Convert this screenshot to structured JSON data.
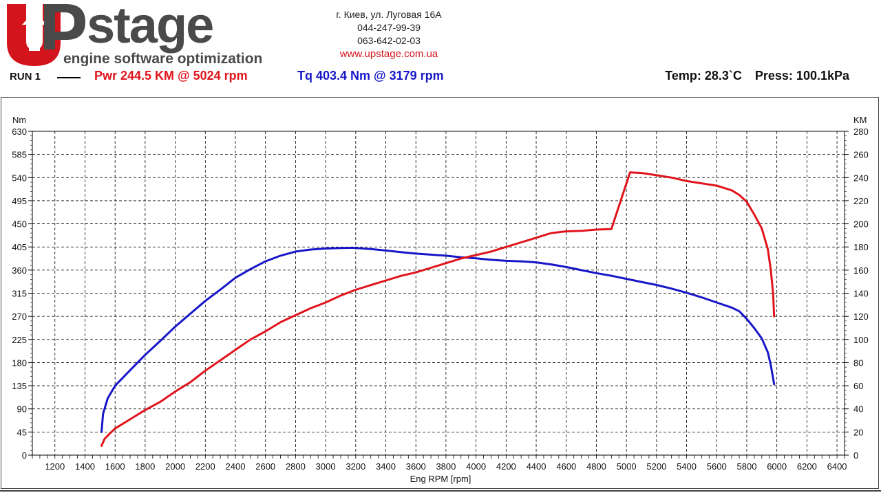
{
  "header": {
    "brand": "UPstage",
    "brand_text": "stage",
    "tagline": "engine software optimization",
    "address": "г. Киев, ул. Луговая 16А",
    "phone1": "044-247-99-39",
    "phone2": "063-642-02-03",
    "website": "www.upstage.com.ua"
  },
  "run": {
    "label": "RUN 1",
    "power_summary": "Pwr  244.5 KM @ 5024 rpm",
    "torque_summary": "Tq 403.4 Nm @ 3179 rpm",
    "temperature": "Temp: 28.3`C",
    "pressure": "Press: 100.1kPa"
  },
  "colors": {
    "power": "#e0141c",
    "torque": "#1717c8",
    "logo_red": "#d4141c",
    "logo_gray": "#4a4a4a"
  },
  "chart_data": {
    "type": "line",
    "xlabel": "Eng RPM [rpm]",
    "ylabel_left": "Nm",
    "ylabel_right": "KM",
    "xlim": [
      1050,
      6450
    ],
    "xticks": [
      1200,
      1400,
      1600,
      1800,
      2000,
      2200,
      2400,
      2600,
      2800,
      3000,
      3200,
      3400,
      3600,
      3800,
      4000,
      4200,
      4400,
      4600,
      4800,
      5000,
      5200,
      5400,
      5600,
      5800,
      6000,
      6200,
      6400
    ],
    "ylim_left": [
      0,
      630
    ],
    "yticks_left": [
      0,
      45,
      90,
      135,
      180,
      225,
      270,
      315,
      360,
      405,
      450,
      495,
      540,
      585,
      630
    ],
    "ylim_right": [
      0,
      280
    ],
    "yticks_right": [
      0,
      20,
      40,
      60,
      80,
      100,
      120,
      140,
      160,
      180,
      200,
      220,
      240,
      260,
      280
    ],
    "grid": true,
    "series": [
      {
        "name": "Tq",
        "axis": "left",
        "points": [
          [
            1510,
            45
          ],
          [
            1520,
            80
          ],
          [
            1550,
            110
          ],
          [
            1600,
            135
          ],
          [
            1700,
            165
          ],
          [
            1800,
            195
          ],
          [
            1900,
            222
          ],
          [
            2000,
            250
          ],
          [
            2100,
            275
          ],
          [
            2200,
            300
          ],
          [
            2300,
            322
          ],
          [
            2400,
            345
          ],
          [
            2500,
            362
          ],
          [
            2600,
            377
          ],
          [
            2700,
            388
          ],
          [
            2800,
            396
          ],
          [
            2900,
            400
          ],
          [
            3000,
            402
          ],
          [
            3100,
            403
          ],
          [
            3179,
            403.4
          ],
          [
            3300,
            401
          ],
          [
            3400,
            398
          ],
          [
            3500,
            395
          ],
          [
            3600,
            392
          ],
          [
            3700,
            390
          ],
          [
            3800,
            388
          ],
          [
            3900,
            385
          ],
          [
            4000,
            383
          ],
          [
            4100,
            380
          ],
          [
            4200,
            378
          ],
          [
            4300,
            377
          ],
          [
            4400,
            375
          ],
          [
            4500,
            371
          ],
          [
            4600,
            366
          ],
          [
            4700,
            360
          ],
          [
            4800,
            354
          ],
          [
            4900,
            349
          ],
          [
            5000,
            343
          ],
          [
            5100,
            337
          ],
          [
            5200,
            331
          ],
          [
            5300,
            324
          ],
          [
            5400,
            316
          ],
          [
            5500,
            307
          ],
          [
            5600,
            297
          ],
          [
            5700,
            287
          ],
          [
            5750,
            280
          ],
          [
            5800,
            265
          ],
          [
            5850,
            247
          ],
          [
            5900,
            227
          ],
          [
            5940,
            200
          ],
          [
            5960,
            175
          ],
          [
            5975,
            150
          ],
          [
            5982,
            138
          ]
        ]
      },
      {
        "name": "Pwr",
        "axis": "right",
        "points": [
          [
            1510,
            8
          ],
          [
            1530,
            14
          ],
          [
            1560,
            18
          ],
          [
            1600,
            23
          ],
          [
            1700,
            31
          ],
          [
            1800,
            39
          ],
          [
            1900,
            46
          ],
          [
            2000,
            55
          ],
          [
            2100,
            63
          ],
          [
            2200,
            73
          ],
          [
            2300,
            82
          ],
          [
            2400,
            91
          ],
          [
            2500,
            100
          ],
          [
            2600,
            107
          ],
          [
            2700,
            115
          ],
          [
            2800,
            121
          ],
          [
            2900,
            127
          ],
          [
            3000,
            132
          ],
          [
            3100,
            138
          ],
          [
            3200,
            143
          ],
          [
            3300,
            147
          ],
          [
            3400,
            151
          ],
          [
            3500,
            155
          ],
          [
            3600,
            158
          ],
          [
            3700,
            162
          ],
          [
            3800,
            166
          ],
          [
            3900,
            170
          ],
          [
            4000,
            173
          ],
          [
            4100,
            176
          ],
          [
            4200,
            180
          ],
          [
            4300,
            184
          ],
          [
            4400,
            188
          ],
          [
            4500,
            192
          ],
          [
            4600,
            193.5
          ],
          [
            4700,
            194
          ],
          [
            4800,
            195
          ],
          [
            4900,
            195.5
          ],
          [
            5024,
            244.5
          ],
          [
            5100,
            244
          ],
          [
            5200,
            242
          ],
          [
            5300,
            240
          ],
          [
            5400,
            237
          ],
          [
            5500,
            235
          ],
          [
            5600,
            233
          ],
          [
            5700,
            229
          ],
          [
            5750,
            225
          ],
          [
            5800,
            219
          ],
          [
            5850,
            208
          ],
          [
            5900,
            196
          ],
          [
            5940,
            178
          ],
          [
            5960,
            160
          ],
          [
            5975,
            140
          ],
          [
            5982,
            120
          ]
        ]
      }
    ]
  }
}
